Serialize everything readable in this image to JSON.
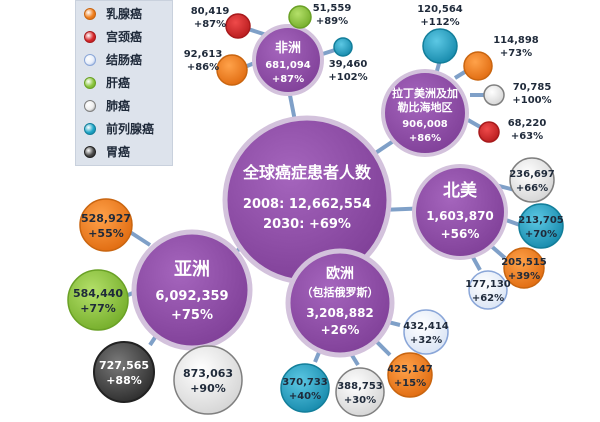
{
  "legend": [
    {
      "label": "乳腺癌",
      "color": "#f07f1e",
      "ring": "#c96510"
    },
    {
      "label": "宫颈癌",
      "color": "#d8282b",
      "ring": "#a81a1c"
    },
    {
      "label": "结肠癌",
      "color": "#e7eefa",
      "ring": "#8aa6d8"
    },
    {
      "label": "肝癌",
      "color": "#8cc63f",
      "ring": "#6aa126"
    },
    {
      "label": "肺癌",
      "color": "#eeeeee",
      "ring": "#7f7f7f"
    },
    {
      "label": "前列腺癌",
      "color": "#1ea6c8",
      "ring": "#127e9a"
    },
    {
      "label": "胃癌",
      "color": "#4a4a4a",
      "ring": "#222222"
    }
  ],
  "center": {
    "line1": "全球癌症患者人数",
    "line2": "2008: 12,662,554",
    "line3": "2030:  +69%"
  },
  "regions": {
    "africa": {
      "line1": "非洲",
      "line2": "681,094",
      "line3": "+87%"
    },
    "latam": {
      "line1": "拉丁美洲及加",
      "line2": "勒比海地区",
      "line3": "906,008",
      "line4": "+86%"
    },
    "na": {
      "line1": "北美",
      "line2": "1,603,870",
      "line3": "+56%"
    },
    "asia": {
      "line1": "亚洲",
      "line2": "6,092,359",
      "line3": "+75%"
    },
    "europe": {
      "line1": "欧洲",
      "line2": "（包括俄罗斯）",
      "line3": "3,208,882",
      "line4": "+26%"
    }
  },
  "satellites": {
    "af_cervical": {
      "value": "80,419",
      "pct": "+87%"
    },
    "af_liver": {
      "value": "51,559",
      "pct": "+89%"
    },
    "af_breast": {
      "value": "92,613",
      "pct": "+86%"
    },
    "af_prostate": {
      "value": "39,460",
      "pct": "+102%"
    },
    "la_prostate": {
      "value": "120,564",
      "pct": "+112%"
    },
    "la_breast": {
      "value": "114,898",
      "pct": "+73%"
    },
    "la_lung": {
      "value": "70,785",
      "pct": "+100%"
    },
    "la_cervical": {
      "value": "68,220",
      "pct": "+63%"
    },
    "na_lung": {
      "value": "236,697",
      "pct": "+66%"
    },
    "na_prostate": {
      "value": "213,705",
      "pct": "+70%"
    },
    "na_breast": {
      "value": "205,515",
      "pct": "+39%"
    },
    "na_colon": {
      "value": "177,130",
      "pct": "+62%"
    },
    "as_breast": {
      "value": "528,927",
      "pct": "+55%"
    },
    "as_liver": {
      "value": "584,440",
      "pct": "+77%"
    },
    "as_stomach": {
      "value": "727,565",
      "pct": "+88%"
    },
    "as_lung": {
      "value": "873,063",
      "pct": "+90%"
    },
    "eu_colon": {
      "value": "432,414",
      "pct": "+32%"
    },
    "eu_breast": {
      "value": "425,147",
      "pct": "+15%"
    },
    "eu_prostate": {
      "value": "370,733",
      "pct": "+40%"
    },
    "eu_lung": {
      "value": "388,753",
      "pct": "+30%"
    }
  },
  "colors": {
    "region": "#8f4fa6",
    "line": "#7fa0c8",
    "text_dark": "#1f2a3a"
  }
}
